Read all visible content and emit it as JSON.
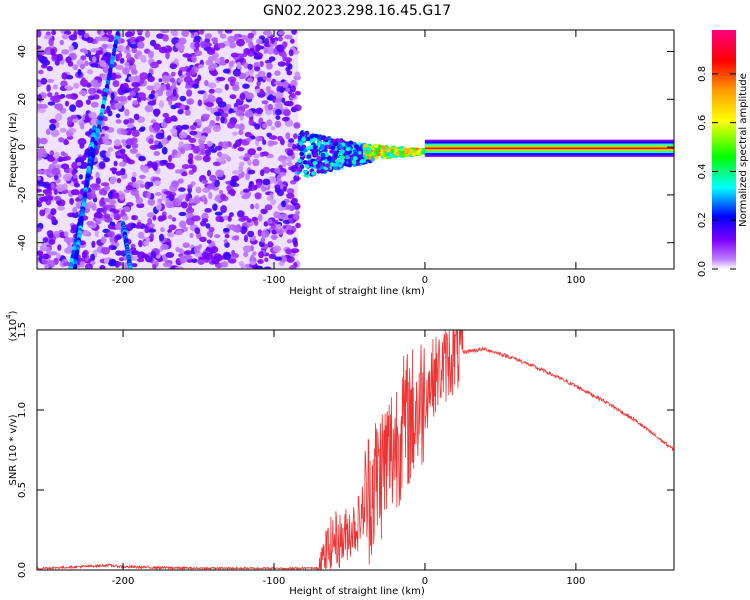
{
  "title": "GN02.2023.298.16.45.G17",
  "chart_data": [
    {
      "type": "heatmap",
      "xlabel": "Height of straight line (km)",
      "ylabel": "Frequency (Hz)",
      "xlim": [
        -257,
        165
      ],
      "ylim": [
        -51,
        49
      ],
      "xticks": [
        -200,
        -100,
        0,
        100
      ],
      "yticks": [
        -40,
        -20,
        0,
        20,
        40
      ],
      "colorbar": {
        "label": "Normalized spectral amplitude",
        "range": [
          0,
          0.98
        ],
        "ticks": [
          0.0,
          0.2,
          0.4,
          0.6,
          0.8
        ],
        "tick_labels": [
          "0.0",
          "0.2",
          "0.4",
          "0.6",
          "0.8"
        ],
        "colormap": [
          "#ffffff",
          "#8000ff",
          "#0000ff",
          "#00ffff",
          "#00ff00",
          "#ffff00",
          "#ff8000",
          "#ff0000",
          "#ff0080"
        ]
      },
      "regions": [
        {
          "name": "noise",
          "x": [
            -257,
            -84
          ],
          "freq": [
            -51,
            49
          ],
          "amplitude": [
            0.0,
            0.2
          ]
        },
        {
          "name": "transition",
          "x": [
            -84,
            -40
          ],
          "freq": [
            -14,
            8
          ],
          "amplitude": [
            0.1,
            0.5
          ]
        },
        {
          "name": "signal",
          "x": [
            -40,
            165
          ],
          "freq": [
            -2,
            0
          ],
          "amplitude": [
            0.6,
            0.98
          ]
        }
      ]
    },
    {
      "type": "line",
      "xlabel": "Height of straight line (km)",
      "ylabel": "SNR (10 * v/v)",
      "y_multiplier": "(x10",
      "y_multiplier_exp": "4",
      "y_multiplier_close": ")",
      "xlim": [
        -257,
        165
      ],
      "ylim": [
        0.0,
        1.5
      ],
      "xticks": [
        -200,
        -100,
        0,
        100
      ],
      "yticks": [
        0.0,
        0.5,
        1.0,
        1.5
      ],
      "ytick_labels": [
        "0.0",
        "0.5",
        "1.0",
        "1.5"
      ],
      "series": [
        {
          "color": "#ee3333",
          "x": [
            -257,
            -230,
            -210,
            -200,
            -150,
            -100,
            -70,
            -65,
            -60,
            -55,
            -50,
            -45,
            -40,
            -35,
            -30,
            -25,
            -20,
            -15,
            -10,
            -5,
            0,
            5,
            10,
            15,
            20,
            30,
            40,
            60,
            80,
            100,
            120,
            140,
            165
          ],
          "y": [
            0.01,
            0.02,
            0.03,
            0.02,
            0.01,
            0.01,
            0.01,
            0.1,
            0.2,
            0.18,
            0.25,
            0.28,
            0.4,
            0.52,
            0.6,
            0.7,
            0.78,
            0.9,
            0.95,
            1.0,
            1.1,
            1.2,
            1.25,
            1.3,
            1.35,
            1.37,
            1.38,
            1.32,
            1.24,
            1.15,
            1.05,
            0.93,
            0.75
          ]
        }
      ]
    }
  ]
}
